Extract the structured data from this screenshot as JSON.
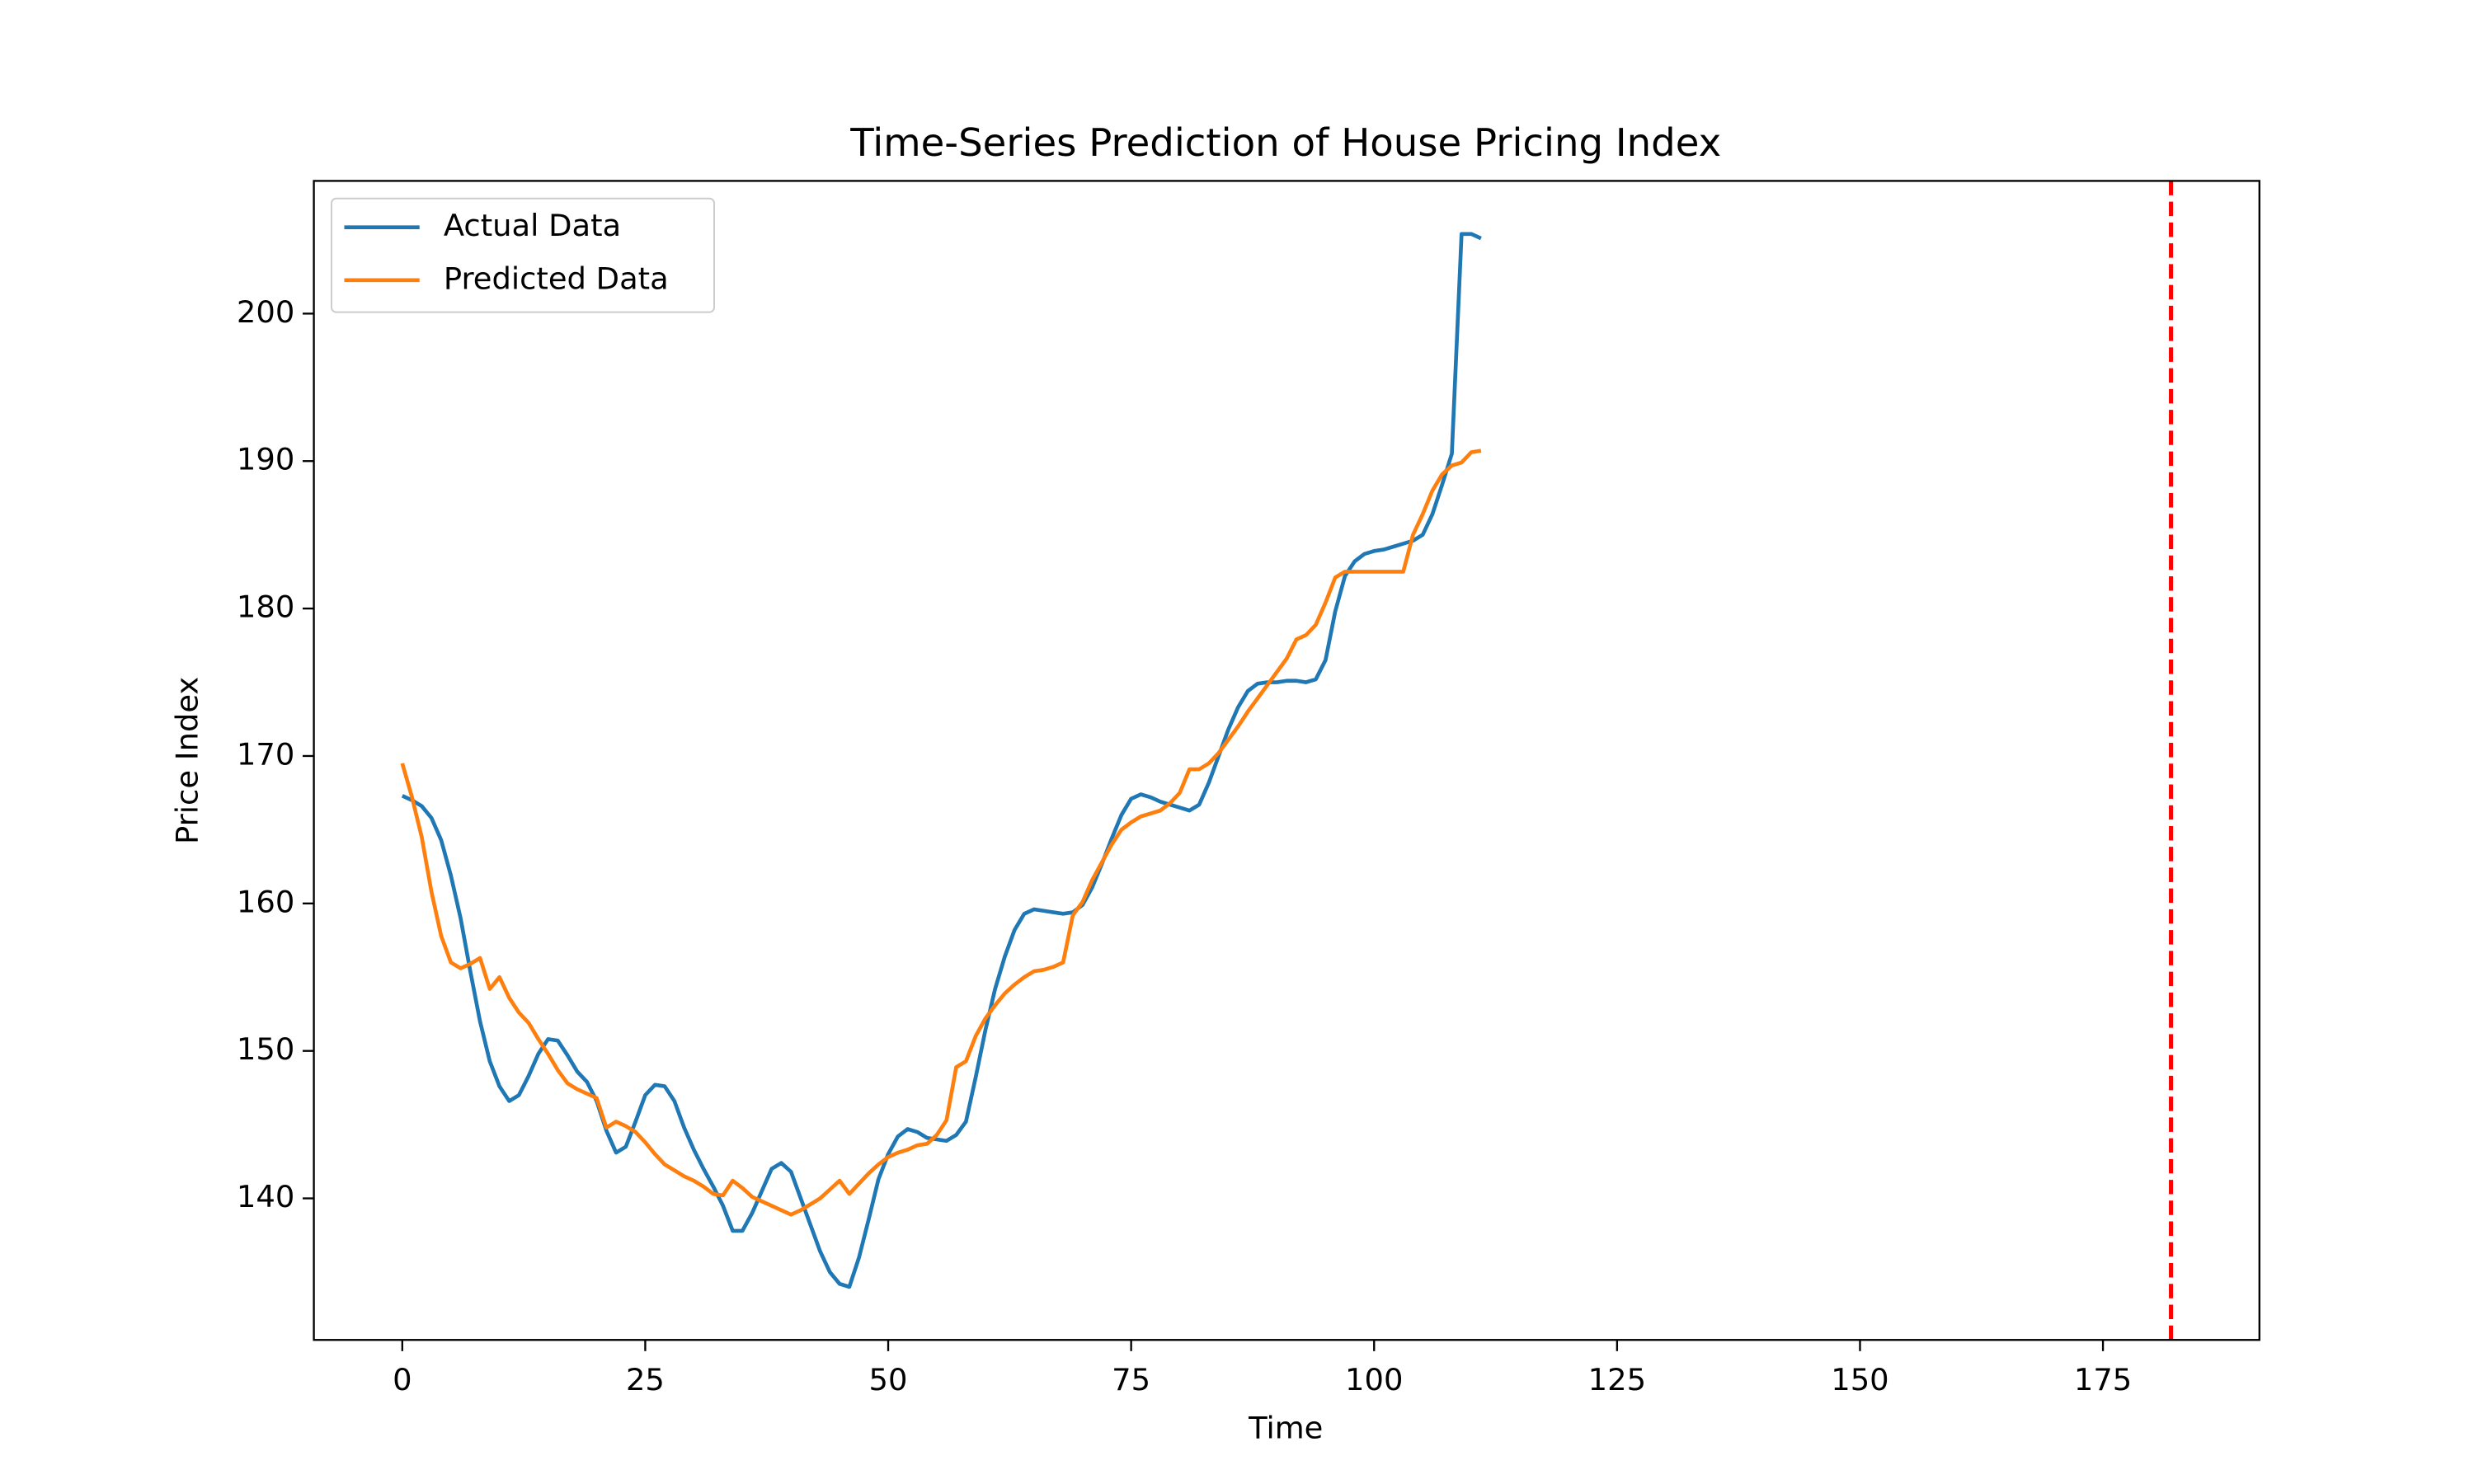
{
  "chart_data": {
    "type": "line",
    "title": "Time-Series Prediction of House Pricing Index",
    "xlabel": "Time",
    "ylabel": "Price Index",
    "x": [
      0,
      1,
      2,
      3,
      4,
      5,
      6,
      7,
      8,
      9,
      10,
      11,
      12,
      13,
      14,
      15,
      16,
      17,
      18,
      19,
      20,
      21,
      22,
      23,
      24,
      25,
      26,
      27,
      28,
      29,
      30,
      31,
      32,
      33,
      34,
      35,
      36,
      37,
      38,
      39,
      40,
      41,
      42,
      43,
      44,
      45,
      46,
      47,
      48,
      49,
      50,
      51,
      52,
      53,
      54,
      55,
      56,
      57,
      58,
      59,
      60,
      61,
      62,
      63,
      64,
      65,
      66,
      67,
      68,
      69,
      70,
      71,
      72,
      73,
      74,
      75,
      76,
      77,
      78,
      79,
      80,
      81,
      82,
      83,
      84,
      85,
      86,
      87,
      88,
      89,
      90,
      91,
      92,
      93,
      94,
      95,
      96,
      97,
      98,
      99,
      100,
      101,
      102,
      103,
      104,
      105,
      106,
      107,
      108,
      109,
      110,
      111
    ],
    "series": [
      {
        "name": "Actual Data",
        "color": "#1f77b4",
        "values": [
          167.3,
          167,
          166.6,
          165.8,
          164.3,
          161.9,
          159,
          155.4,
          152,
          149.3,
          147.6,
          146.6,
          147,
          148.3,
          149.8,
          150.8,
          150.7,
          149.7,
          148.6,
          147.9,
          146.6,
          144.6,
          143.1,
          143.5,
          145.2,
          147,
          147.7,
          147.6,
          146.6,
          144.8,
          143.3,
          142,
          140.8,
          139.5,
          137.8,
          137.8,
          139,
          140.5,
          142,
          142.4,
          141.8,
          140,
          138.2,
          136.4,
          135,
          134.2,
          134,
          136,
          138.6,
          141.3,
          143,
          144.2,
          144.7,
          144.5,
          144.1,
          144,
          143.9,
          144.3,
          145.2,
          148.2,
          151.4,
          154.2,
          156.4,
          158.2,
          159.3,
          159.6,
          159.5,
          159.4,
          159.3,
          159.4,
          159.9,
          161.1,
          162.7,
          164.4,
          166,
          167.1,
          167.4,
          167.2,
          166.9,
          166.7,
          166.5,
          166.3,
          166.7,
          168.2,
          170,
          171.8,
          173.3,
          174.4,
          174.9,
          175,
          175,
          175.1,
          175.1,
          175,
          175.2,
          176.5,
          179.8,
          182.2,
          183.2,
          183.7,
          183.9,
          184,
          184.2,
          184.4,
          184.6,
          185,
          186.4,
          188.4,
          190.5,
          205.4,
          205.4,
          205.1
        ]
      },
      {
        "name": "Predicted Data",
        "color": "#ff7f0e",
        "values": [
          169.5,
          167.2,
          164.5,
          160.8,
          157.8,
          156,
          155.6,
          155.9,
          156.3,
          154.2,
          155,
          153.6,
          152.6,
          151.9,
          150.8,
          149.8,
          148.7,
          147.8,
          147.4,
          147.1,
          146.8,
          144.8,
          145.2,
          144.9,
          144.5,
          143.8,
          143,
          142.3,
          141.9,
          141.5,
          141.2,
          140.8,
          140.3,
          140.2,
          141.2,
          140.7,
          140.1,
          139.8,
          139.5,
          139.2,
          138.9,
          139.2,
          139.6,
          140,
          140.6,
          141.2,
          140.3,
          141,
          141.7,
          142.3,
          142.8,
          143.1,
          143.3,
          143.6,
          143.7,
          144.3,
          145.3,
          148.9,
          149.3,
          151,
          152.2,
          153.1,
          153.9,
          154.5,
          155,
          155.4,
          155.5,
          155.7,
          156,
          159.2,
          160.1,
          161.6,
          162.8,
          164,
          165,
          165.5,
          165.9,
          166.1,
          166.3,
          166.8,
          167.5,
          169.1,
          169.1,
          169.5,
          170.2,
          171.1,
          172,
          173,
          173.9,
          174.8,
          175.7,
          176.6,
          177.9,
          178.2,
          178.9,
          180.4,
          182.1,
          182.5,
          182.5,
          182.5,
          182.5,
          182.5,
          182.5,
          182.5,
          185,
          186.4,
          188,
          189.1,
          189.7,
          189.9,
          190.6,
          190.7
        ]
      }
    ],
    "vline": {
      "x": 182,
      "color": "#ff0000"
    },
    "xlim": [
      -9.1,
      191.1
    ],
    "ylim": [
      130.4,
      209.0
    ],
    "xticks": [
      0,
      25,
      50,
      75,
      100,
      125,
      150,
      175
    ],
    "yticks": [
      140,
      150,
      160,
      170,
      180,
      190,
      200
    ],
    "legend": "upper left"
  }
}
